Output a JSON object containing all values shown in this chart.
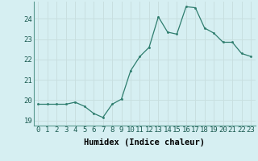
{
  "x": [
    0,
    1,
    2,
    3,
    4,
    5,
    6,
    7,
    8,
    9,
    10,
    11,
    12,
    13,
    14,
    15,
    16,
    17,
    18,
    19,
    20,
    21,
    22,
    23
  ],
  "y": [
    19.8,
    19.8,
    19.8,
    19.8,
    19.9,
    19.7,
    19.35,
    19.15,
    19.8,
    20.05,
    21.45,
    22.15,
    22.6,
    24.1,
    23.35,
    23.25,
    24.6,
    24.55,
    23.55,
    23.3,
    22.85,
    22.85,
    22.3,
    22.15
  ],
  "line_color": "#2e7d6e",
  "marker": ".",
  "marker_size": 3,
  "bg_color": "#d6eff2",
  "grid_color": "#c8dfe0",
  "xlabel": "Humidex (Indice chaleur)",
  "ylabel_ticks": [
    19,
    20,
    21,
    22,
    23,
    24
  ],
  "xlim": [
    -0.5,
    23.5
  ],
  "ylim": [
    18.75,
    24.85
  ],
  "xtick_labels": [
    "0",
    "1",
    "2",
    "3",
    "4",
    "5",
    "6",
    "7",
    "8",
    "9",
    "10",
    "11",
    "12",
    "13",
    "14",
    "15",
    "16",
    "17",
    "18",
    "19",
    "20",
    "21",
    "22",
    "23"
  ],
  "label_fontsize": 7.5,
  "tick_fontsize": 6.5
}
